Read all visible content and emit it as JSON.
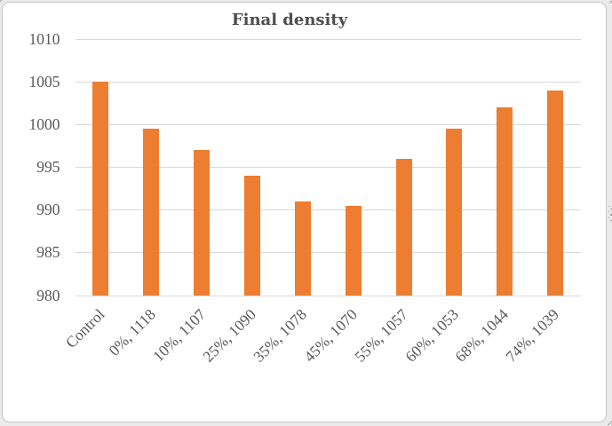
{
  "chart_data": {
    "type": "bar",
    "title": "Final density",
    "categories": [
      "Control",
      "0%, 1118",
      "10%, 1107",
      "25%, 1090",
      "35%, 1078",
      "45%, 1070",
      "55%, 1057",
      "60%, 1053",
      "68%, 1044",
      "74%, 1039"
    ],
    "values": [
      1005,
      999.5,
      997,
      994,
      991,
      990.5,
      996,
      999.5,
      1002,
      1004
    ],
    "xlabel": "",
    "ylabel": "",
    "ylim": [
      980,
      1010
    ],
    "ytick_step": 5,
    "yticks": [
      980,
      985,
      990,
      995,
      1000,
      1005,
      1010
    ],
    "grid": true,
    "legend": "none",
    "bar_color": "#ed7d31",
    "gridline_color": "#d9d9d9",
    "axis_text_color": "#595959",
    "title_color": "#4d4d4d",
    "chart_background": "#ffffff",
    "page_background": "#eaeaea",
    "chart_border_color": "#c6c6c6"
  }
}
